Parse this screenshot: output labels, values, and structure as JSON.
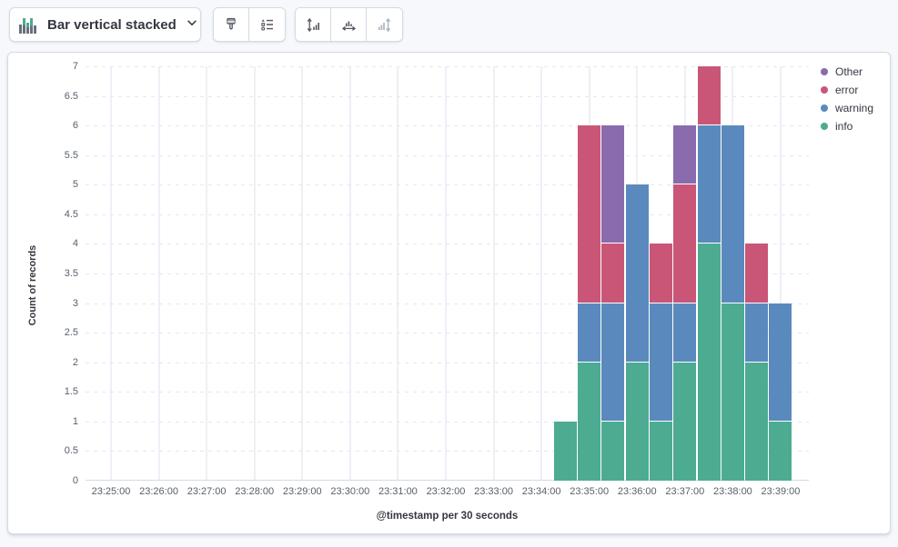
{
  "toolbar": {
    "chart_type_label": "Bar vertical stacked",
    "chart_type_icon": "bar-vertical-stacked-icon",
    "buttons": [
      {
        "name": "visual-options",
        "icon": "brush-icon",
        "disabled": false
      },
      {
        "name": "legend-settings",
        "icon": "legend-list-icon",
        "disabled": false
      },
      {
        "name": "left-axis",
        "icon": "axis-left-icon",
        "disabled": false
      },
      {
        "name": "bottom-axis",
        "icon": "axis-bottom-icon",
        "disabled": false
      },
      {
        "name": "right-axis",
        "icon": "axis-right-icon",
        "disabled": true
      }
    ]
  },
  "chart": {
    "y_axis_title": "Count of records",
    "x_axis_title": "@timestamp per 30 seconds",
    "y_ticks": [
      "0",
      "0.5",
      "1",
      "1.5",
      "2",
      "2.5",
      "3",
      "3.5",
      "4",
      "4.5",
      "5",
      "5.5",
      "6",
      "6.5",
      "7"
    ],
    "x_ticks": [
      "23:25:00",
      "23:26:00",
      "23:27:00",
      "23:28:00",
      "23:29:00",
      "23:30:00",
      "23:31:00",
      "23:32:00",
      "23:33:00",
      "23:34:00",
      "23:35:00",
      "23:36:00",
      "23:37:00",
      "23:38:00",
      "23:39:00"
    ],
    "legend": [
      {
        "label": "Other",
        "color": "#8a6bad"
      },
      {
        "label": "error",
        "color": "#c95677"
      },
      {
        "label": "warning",
        "color": "#5a8abd"
      },
      {
        "label": "info",
        "color": "#4dab92"
      }
    ]
  },
  "chart_data": {
    "type": "bar",
    "stacked": true,
    "stack_order": "bottom-to-top",
    "legend_position": "right",
    "xlabel": "@timestamp per 30 seconds",
    "ylabel": "Count of records",
    "ylim": [
      0,
      7
    ],
    "x_axis_range": [
      "23:25:00",
      "23:39:00"
    ],
    "bucket_interval_seconds": 30,
    "grid": true,
    "categories": [
      "23:34:30",
      "23:35:00",
      "23:35:30",
      "23:36:00",
      "23:36:30",
      "23:37:00",
      "23:37:30",
      "23:38:00",
      "23:38:30",
      "23:39:00"
    ],
    "series": [
      {
        "name": "info",
        "color": "#4dab92",
        "values": [
          1,
          2,
          1,
          2,
          1,
          2,
          4,
          3,
          2,
          1
        ]
      },
      {
        "name": "warning",
        "color": "#5a8abd",
        "values": [
          0,
          1,
          2,
          3,
          2,
          1,
          2,
          3,
          1,
          2
        ]
      },
      {
        "name": "error",
        "color": "#c95677",
        "values": [
          0,
          3,
          1,
          0,
          1,
          2,
          1,
          0,
          1,
          0
        ]
      },
      {
        "name": "Other",
        "color": "#8a6bad",
        "values": [
          0,
          0,
          2,
          0,
          0,
          1,
          0,
          0,
          0,
          0
        ]
      }
    ],
    "totals": [
      1,
      6,
      6,
      5,
      4,
      6,
      7,
      6,
      4,
      3
    ]
  }
}
